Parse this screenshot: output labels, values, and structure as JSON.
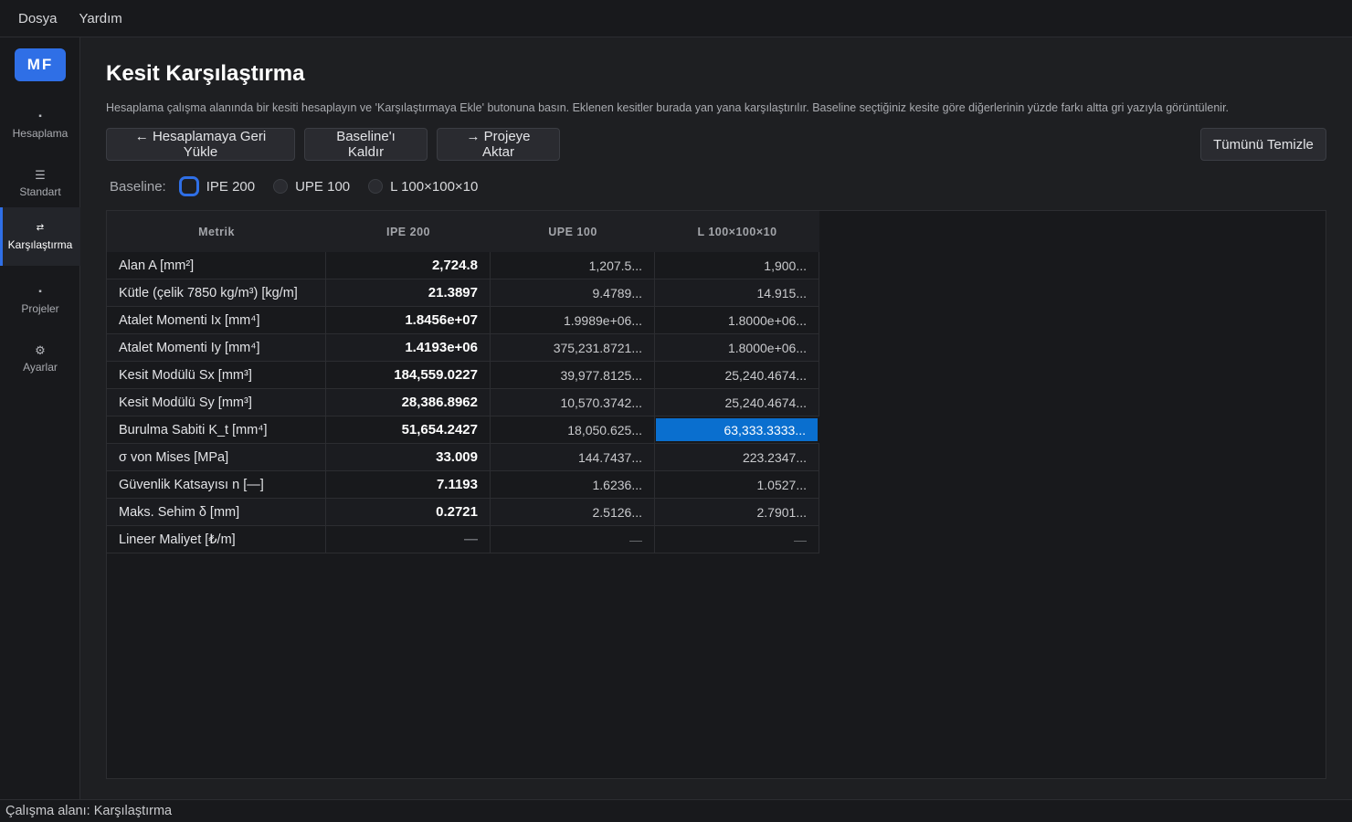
{
  "menu": {
    "items": [
      "Dosya",
      "Yardım"
    ]
  },
  "sidebar": {
    "logo": "MF",
    "items": [
      {
        "label": "Hesaplama",
        "icon": "▪",
        "icon_name": "calculator-icon",
        "active": false
      },
      {
        "label": "Standart",
        "icon": "☰",
        "icon_name": "list-icon",
        "active": false
      },
      {
        "label": "Karşılaştırma",
        "icon": "⇄",
        "icon_name": "compare-icon",
        "active": true
      },
      {
        "label": "Projeler",
        "icon": "▪",
        "icon_name": "projects-icon",
        "active": false
      },
      {
        "label": "Ayarlar",
        "icon": "⚙",
        "icon_name": "gear-icon",
        "active": false
      }
    ]
  },
  "main": {
    "title": "Kesit Karşılaştırma",
    "description": "Hesaplama çalışma alanında bir kesiti hesaplayın ve 'Karşılaştırmaya Ekle' butonuna basın. Eklenen kesitler burada yan yana karşılaştırılır. Baseline seçtiğiniz kesite göre diğerlerinin yüzde farkı altta gri yazıyla görüntülenir.",
    "buttons": {
      "load_back": "← Hesaplamaya Geri Yükle",
      "remove_baseline": "Baseline'ı Kaldır",
      "export_project": "→ Projeye Aktar",
      "clear_all": "Tümünü Temizle"
    },
    "baseline": {
      "label": "Baseline:",
      "options": [
        "IPE 200",
        "UPE 100",
        "L 100×100×10"
      ],
      "selected": "IPE 200"
    }
  },
  "table": {
    "headers": [
      "Metrik",
      "IPE 200",
      "UPE 100",
      "L 100×100×10"
    ],
    "rows": [
      {
        "metric": "Alan A  [mm²]",
        "values": [
          "2,724.8",
          "1,207.5...",
          "1,900..."
        ]
      },
      {
        "metric": "Kütle (çelik 7850 kg/m³)  [kg/m]",
        "values": [
          "21.3897",
          "9.4789...",
          "14.915..."
        ]
      },
      {
        "metric": "Atalet Momenti Ix  [mm⁴]",
        "values": [
          "1.8456e+07",
          "1.9989e+06...",
          "1.8000e+06..."
        ]
      },
      {
        "metric": "Atalet Momenti Iy  [mm⁴]",
        "values": [
          "1.4193e+06",
          "375,231.8721...",
          "1.8000e+06..."
        ]
      },
      {
        "metric": "Kesit Modülü Sx  [mm³]",
        "values": [
          "184,559.0227",
          "39,977.8125...",
          "25,240.4674..."
        ]
      },
      {
        "metric": "Kesit Modülü Sy  [mm³]",
        "values": [
          "28,386.8962",
          "10,570.3742...",
          "25,240.4674..."
        ]
      },
      {
        "metric": "Burulma Sabiti K_t  [mm⁴]",
        "values": [
          "51,654.2427",
          "18,050.625...",
          "63,333.3333..."
        ]
      },
      {
        "metric": "σ von Mises  [MPa]",
        "values": [
          "33.009",
          "144.7437...",
          "223.2347..."
        ]
      },
      {
        "metric": "Güvenlik Katsayısı n  [—]",
        "values": [
          "7.1193",
          "1.6236...",
          "1.0527..."
        ]
      },
      {
        "metric": "Maks. Sehim δ  [mm]",
        "values": [
          "0.2721",
          "2.5126...",
          "2.7901..."
        ]
      },
      {
        "metric": "Lineer Maliyet  [₺/m]",
        "values": [
          "—",
          "—",
          "—"
        ]
      }
    ],
    "selected_cell": {
      "row": 6,
      "col": 2
    }
  },
  "status": {
    "text": "Çalışma alanı: Karşılaştırma"
  },
  "colors": {
    "accent": "#2f6fe6",
    "selection": "#0a6fcf",
    "background": "#1e1f22"
  }
}
